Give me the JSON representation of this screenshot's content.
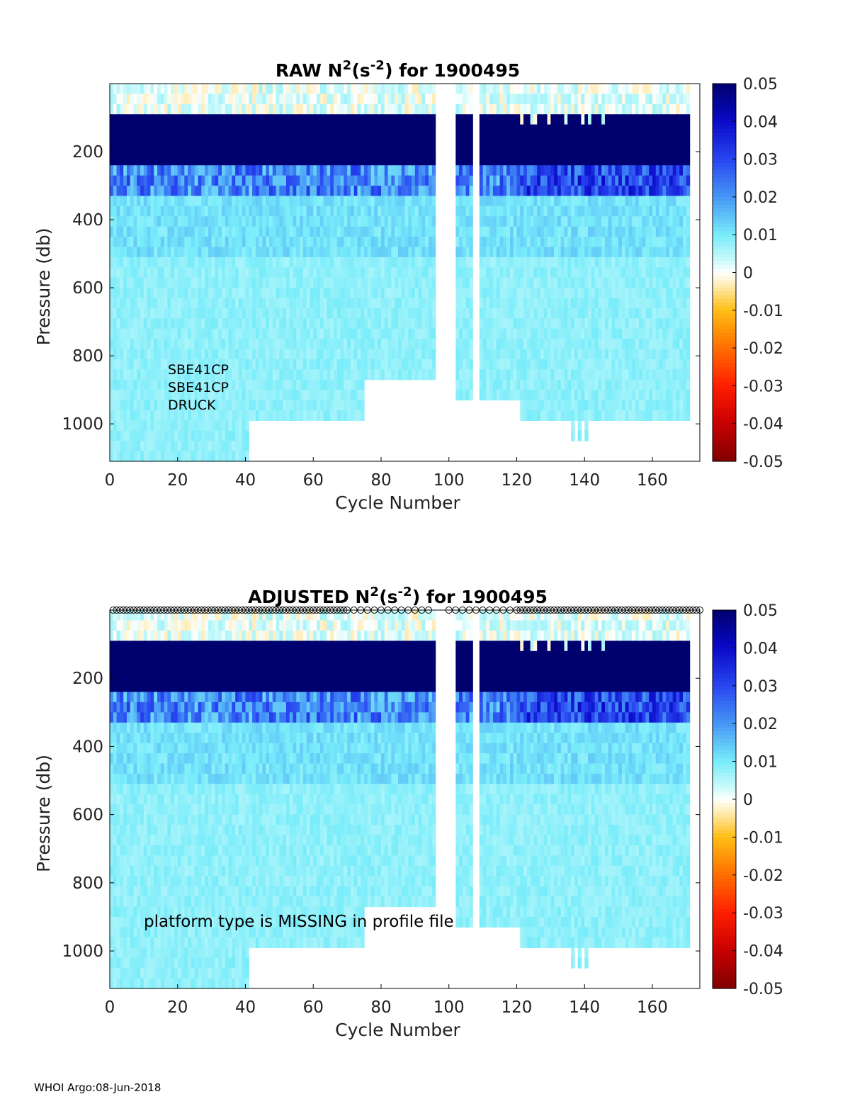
{
  "footer": "WHOI Argo:08-Jun-2018",
  "chart_data": [
    {
      "type": "heatmap",
      "title": {
        "prefix": "RAW N",
        "sup1": "2",
        "mid": " (s",
        "sup2": "-2",
        "suffix": ") for 1900495"
      },
      "xlabel": "Cycle Number",
      "ylabel": "Pressure (db)",
      "xlim": [
        0,
        174
      ],
      "ylim": [
        0,
        1110
      ],
      "y_reversed": true,
      "xticks": [
        0,
        20,
        40,
        60,
        80,
        100,
        120,
        140,
        160
      ],
      "yticks": [
        200,
        400,
        600,
        800,
        1000
      ],
      "colorbar": {
        "colormap": "jet (with white at 0)",
        "range": [
          -0.05,
          0.05
        ],
        "ticks": [
          "0.05",
          "0.04",
          "0.03",
          "0.02",
          "0.01",
          "0",
          "-0.01",
          "-0.02",
          "-0.03",
          "-0.04",
          "-0.05"
        ]
      },
      "annotation_lines": [
        "SBE41CP",
        "SBE41CP",
        "DRUCK"
      ],
      "value_bands_approx": [
        {
          "pressure": "0-60",
          "n2": 0.002
        },
        {
          "pressure": "60-230",
          "n2": 0.05
        },
        {
          "pressure": "230-330",
          "n2": 0.02
        },
        {
          "pressure": "330-1110",
          "n2": 0.01
        }
      ],
      "profile_max_pressure_approx": [
        {
          "cycles": "0-41",
          "max_pressure": 1110
        },
        {
          "cycles": "41-75",
          "max_pressure": 990
        },
        {
          "cycles": "75-96",
          "max_pressure": 870
        },
        {
          "cycles": "102-107",
          "max_pressure": 930
        },
        {
          "cycles": "109-121",
          "max_pressure": 930
        },
        {
          "cycles": "121-171",
          "max_pressure": 990
        }
      ],
      "missing_cycles": [
        "96-102",
        "107-109"
      ]
    },
    {
      "type": "heatmap",
      "title": {
        "prefix": "ADJUSTED N",
        "sup1": "2",
        "mid": " (s",
        "sup2": "-2",
        "suffix": ") for 1900495"
      },
      "xlabel": "Cycle Number",
      "ylabel": "Pressure (db)",
      "xlim": [
        0,
        174
      ],
      "ylim": [
        0,
        1110
      ],
      "y_reversed": true,
      "xticks": [
        0,
        20,
        40,
        60,
        80,
        100,
        120,
        140,
        160
      ],
      "yticks": [
        200,
        400,
        600,
        800,
        1000
      ],
      "colorbar": {
        "colormap": "jet (with white at 0)",
        "range": [
          -0.05,
          0.05
        ],
        "ticks": [
          "0.05",
          "0.04",
          "0.03",
          "0.02",
          "0.01",
          "0",
          "-0.01",
          "-0.02",
          "-0.03",
          "-0.04",
          "-0.05"
        ]
      },
      "annotation": "platform type is MISSING in profile file",
      "qc_markers": "circle markers along top edge for each cycle",
      "value_bands_approx": [
        {
          "pressure": "0-60",
          "n2": 0.002
        },
        {
          "pressure": "60-230",
          "n2": 0.05
        },
        {
          "pressure": "230-330",
          "n2": 0.02
        },
        {
          "pressure": "330-1110",
          "n2": 0.01
        }
      ],
      "missing_cycles": [
        "96-102",
        "107-109"
      ]
    }
  ]
}
